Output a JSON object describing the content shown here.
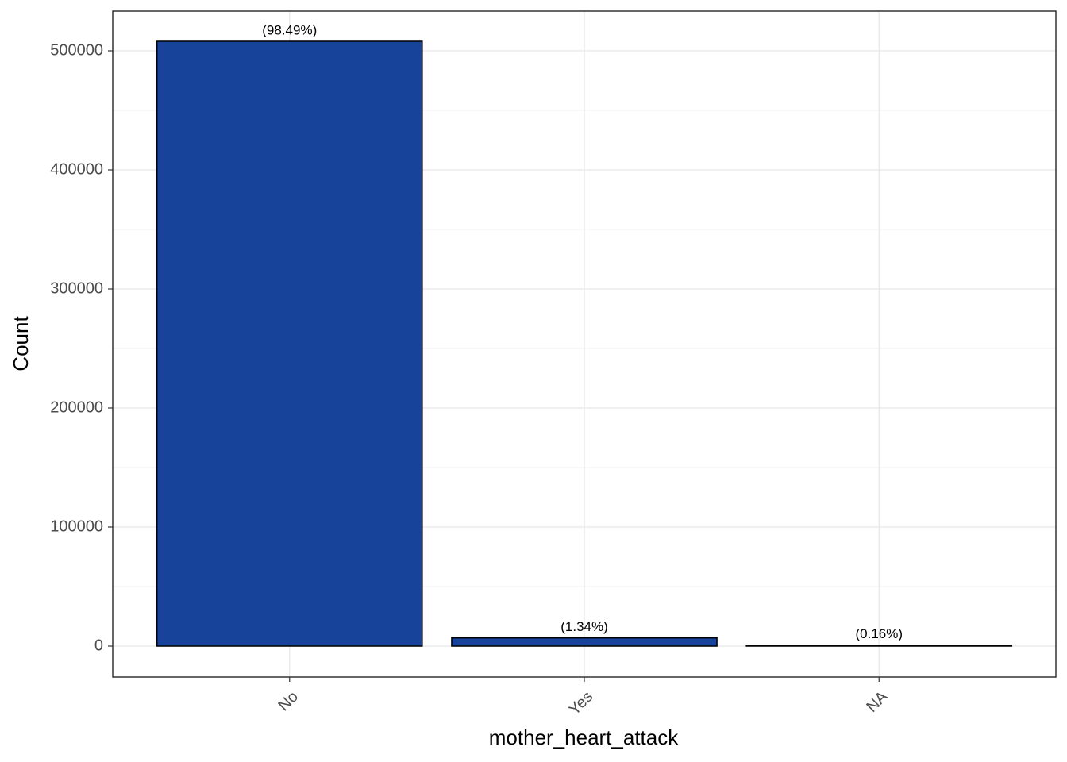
{
  "chart_data": {
    "type": "bar",
    "x_label": "mother_heart_attack",
    "y_label": "Count",
    "categories": [
      "No",
      "Yes",
      "NA"
    ],
    "values": [
      508000,
      6900,
      830
    ],
    "percent_labels": [
      "(98.49%)",
      "(1.34%)",
      "(0.16%)"
    ],
    "color": "#17449a",
    "ylim": [
      -26000,
      533333
    ],
    "yticks": [
      0,
      100000,
      200000,
      300000,
      400000,
      500000
    ],
    "minor_yticks": [
      50000,
      150000,
      250000,
      350000,
      450000
    ],
    "grid": true
  }
}
